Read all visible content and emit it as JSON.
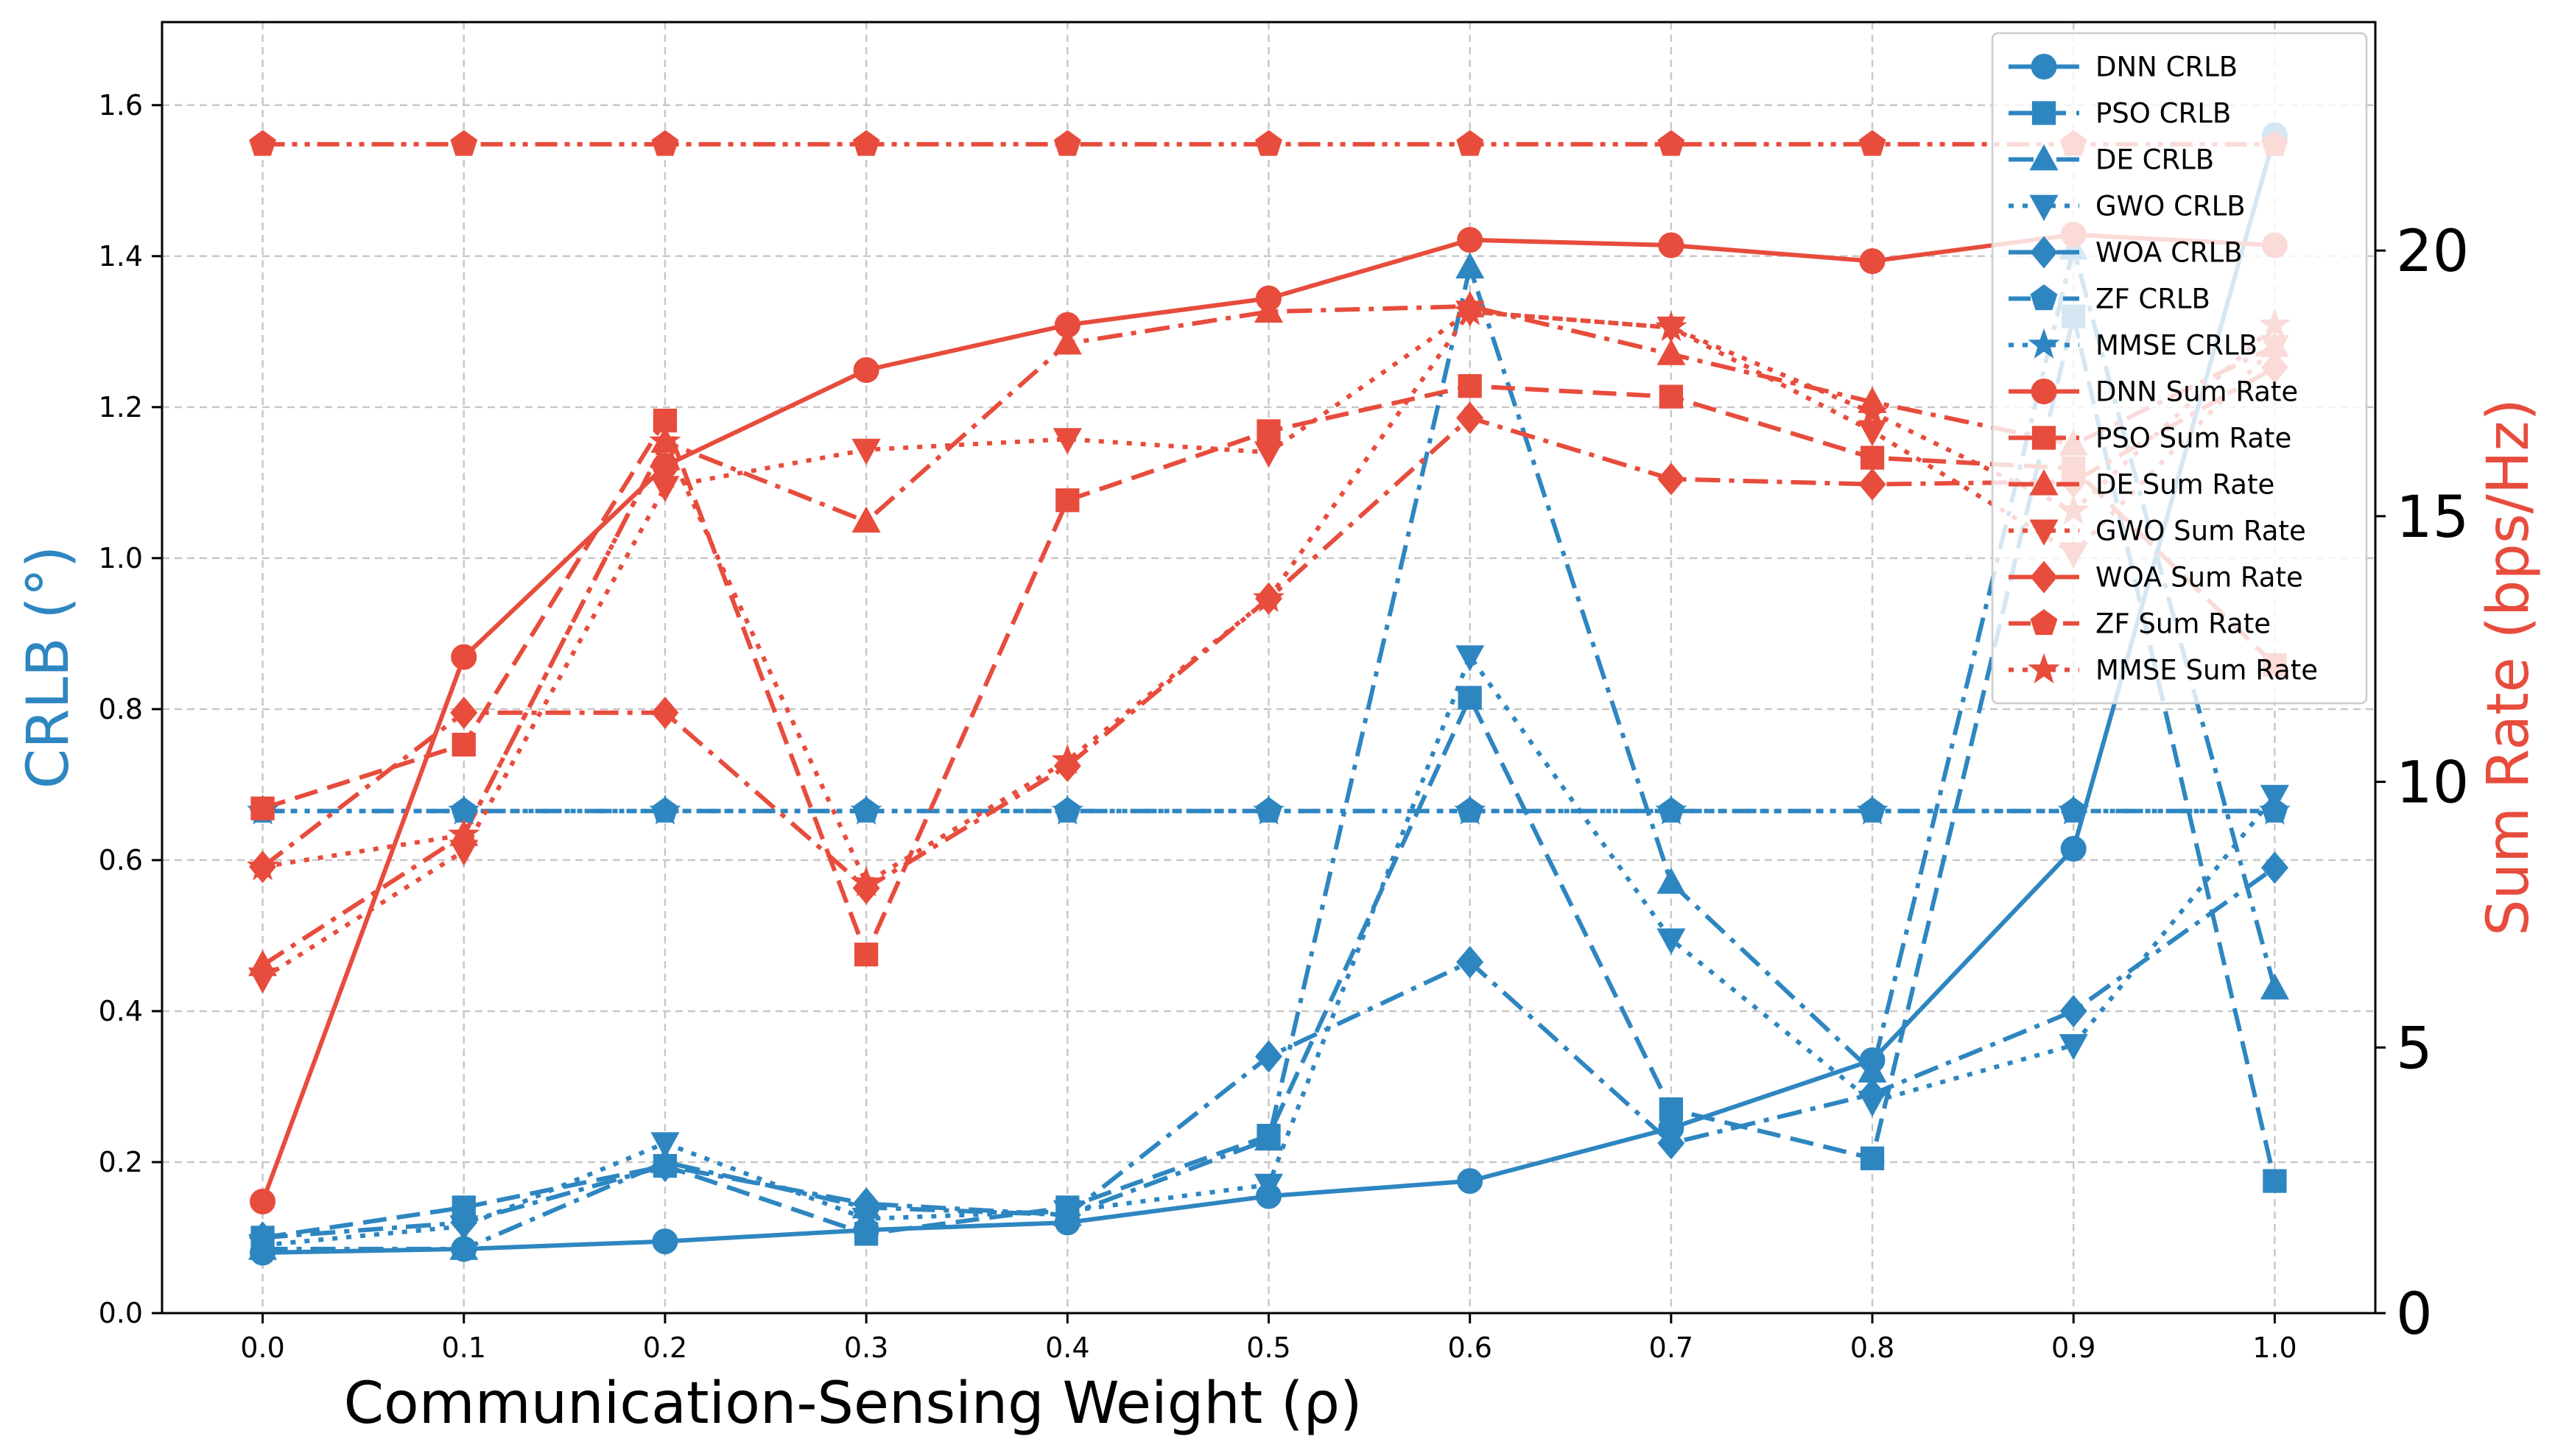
{
  "chart_data": {
    "type": "line",
    "xlabel": "Communication-Sensing Weight (ρ)",
    "ylabel_left": "CRLB (°)",
    "ylabel_right": "Sum Rate (bps/Hz)",
    "x": [
      0.0,
      0.1,
      0.2,
      0.3,
      0.4,
      0.5,
      0.6,
      0.7,
      0.8,
      0.9,
      1.0
    ],
    "x_ticks": [
      "0.0",
      "0.1",
      "0.2",
      "0.3",
      "0.4",
      "0.5",
      "0.6",
      "0.7",
      "0.8",
      "0.9",
      "1.0"
    ],
    "xlim": [
      -0.05,
      1.05
    ],
    "ylim_left": [
      0,
      1.71
    ],
    "ylim_right": [
      0,
      24.3
    ],
    "left_ticks": [
      {
        "v": 0.0,
        "label": "0.0"
      },
      {
        "v": 0.2,
        "label": "0.2"
      },
      {
        "v": 0.4,
        "label": "0.4"
      },
      {
        "v": 0.6,
        "label": "0.6"
      },
      {
        "v": 0.8,
        "label": "0.8"
      },
      {
        "v": 1.0,
        "label": "1.0"
      },
      {
        "v": 1.2,
        "label": "1.2"
      },
      {
        "v": 1.4,
        "label": "1.4"
      },
      {
        "v": 1.6,
        "label": "1.6"
      }
    ],
    "right_ticks": [
      {
        "v": 0,
        "label": "0"
      },
      {
        "v": 5,
        "label": "5"
      },
      {
        "v": 10,
        "label": "10"
      },
      {
        "v": 15,
        "label": "15"
      },
      {
        "v": 20,
        "label": "20"
      }
    ],
    "grid": true,
    "legend_position": "top-right",
    "colors": {
      "crlb": "#2e86c1",
      "sumrate": "#e74c3c"
    },
    "series": [
      {
        "name": "DNN CRLB",
        "axis": "left",
        "marker": "circle",
        "dash": "solid",
        "values": [
          0.08,
          0.085,
          0.095,
          0.11,
          0.12,
          0.155,
          0.175,
          0.245,
          0.335,
          0.615,
          1.56
        ]
      },
      {
        "name": "PSO CRLB",
        "axis": "left",
        "marker": "square",
        "dash": "dashed",
        "values": [
          0.1,
          0.14,
          0.195,
          0.105,
          0.14,
          0.235,
          0.815,
          0.27,
          0.205,
          1.32,
          0.175
        ]
      },
      {
        "name": "DE CRLB",
        "axis": "left",
        "marker": "triangle-up",
        "dash": "dashdot",
        "values": [
          0.085,
          0.085,
          0.2,
          0.14,
          0.13,
          0.23,
          1.385,
          0.57,
          0.32,
          1.41,
          0.43
        ]
      },
      {
        "name": "GWO CRLB",
        "axis": "left",
        "marker": "triangle-down",
        "dash": "dotted",
        "values": [
          0.09,
          0.115,
          0.225,
          0.125,
          0.135,
          0.17,
          0.87,
          0.495,
          0.28,
          0.355,
          0.685
        ]
      },
      {
        "name": "WOA CRLB",
        "axis": "left",
        "marker": "diamond",
        "dash": "dashdot",
        "values": [
          0.1,
          0.12,
          0.195,
          0.145,
          0.13,
          0.34,
          0.465,
          0.225,
          0.29,
          0.4,
          0.59
        ]
      },
      {
        "name": "ZF CRLB",
        "axis": "left",
        "marker": "pentagon",
        "dash": "dashdotdot",
        "values": [
          0.665,
          0.665,
          0.665,
          0.665,
          0.665,
          0.665,
          0.665,
          0.665,
          0.665,
          0.665,
          0.665
        ]
      },
      {
        "name": "MMSE CRLB",
        "axis": "left",
        "marker": "star",
        "dash": "dotted",
        "values": [
          0.665,
          0.665,
          0.665,
          0.665,
          0.665,
          0.665,
          0.665,
          0.665,
          0.665,
          0.665,
          0.665
        ]
      },
      {
        "name": "DNN Sum Rate",
        "axis": "right",
        "marker": "circle",
        "dash": "solid",
        "values": [
          2.1,
          12.35,
          15.95,
          17.75,
          18.6,
          19.1,
          20.2,
          20.1,
          19.8,
          20.3,
          20.1
        ]
      },
      {
        "name": "PSO Sum Rate",
        "axis": "right",
        "marker": "square",
        "dash": "dashed",
        "values": [
          9.5,
          10.7,
          16.8,
          6.75,
          15.3,
          16.6,
          17.45,
          17.25,
          16.1,
          15.9,
          12.2
        ]
      },
      {
        "name": "DE Sum Rate",
        "axis": "right",
        "marker": "triangle-up",
        "dash": "dashdot",
        "values": [
          6.55,
          9.0,
          16.4,
          14.9,
          18.25,
          18.85,
          18.95,
          18.05,
          17.15,
          16.35,
          18.2
        ]
      },
      {
        "name": "GWO Sum Rate",
        "axis": "right",
        "marker": "triangle-down",
        "dash": "dotted",
        "values": [
          6.3,
          8.7,
          15.55,
          16.25,
          16.45,
          16.2,
          18.85,
          18.55,
          16.6,
          14.3,
          18.2
        ]
      },
      {
        "name": "WOA Sum Rate",
        "axis": "right",
        "marker": "diamond",
        "dash": "dashdot",
        "values": [
          8.4,
          11.3,
          11.3,
          8.0,
          10.3,
          13.45,
          16.85,
          15.7,
          15.6,
          15.65,
          17.8
        ]
      },
      {
        "name": "ZF Sum Rate",
        "axis": "right",
        "marker": "pentagon",
        "dash": "dashdotdot",
        "values": [
          22.0,
          22.0,
          22.0,
          22.0,
          22.0,
          22.0,
          22.0,
          22.0,
          22.0,
          22.0,
          22.0
        ]
      },
      {
        "name": "MMSE Sum Rate",
        "axis": "right",
        "marker": "star",
        "dash": "dotted",
        "values": [
          8.4,
          9.0,
          16.4,
          8.1,
          10.4,
          13.45,
          18.85,
          18.55,
          16.95,
          15.1,
          18.6
        ]
      }
    ]
  }
}
